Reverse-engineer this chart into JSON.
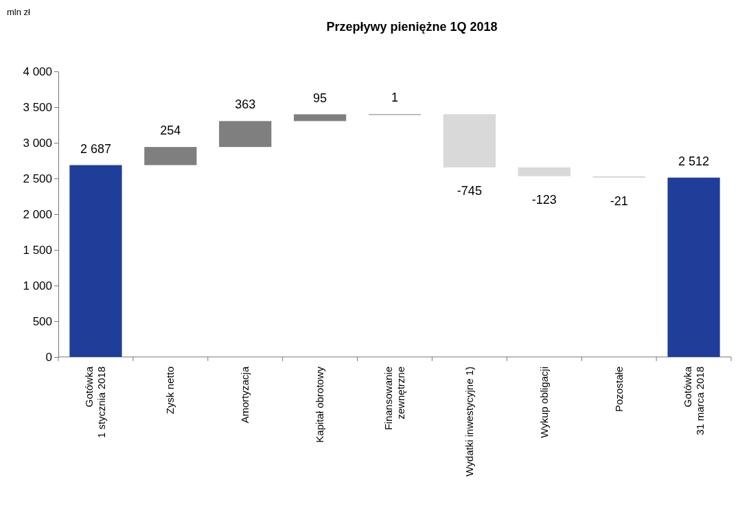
{
  "chart_data": {
    "type": "bar",
    "title": "Przepływy pieniężne 1Q 2018",
    "annotations": [
      "mln zł"
    ],
    "categories": [
      "Gotówka\n1 stycznia 2018",
      "Zysk netto",
      "Amortyzacja",
      "Kapitał obrotowy",
      "Finansowanie\nzewnętrzne",
      "Wydatki inwestycyjne 1)",
      "Wykup obligacji",
      "Pozostałe",
      "Gotówka\n31 marca 2018"
    ],
    "values": [
      2687,
      254,
      363,
      95,
      1,
      -745,
      -123,
      -21,
      2512
    ],
    "base": [
      0,
      2687,
      2941,
      3304,
      3399,
      3400,
      2655,
      2532,
      0
    ],
    "colors": [
      "#1f3e9a",
      "#7f7f7f",
      "#7f7f7f",
      "#7f7f7f",
      "#7f7f7f",
      "#d9d9d9",
      "#d9d9d9",
      "#d9d9d9",
      "#1f3e9a"
    ],
    "value_labels": [
      "2 687",
      "254",
      "363",
      "95",
      "1",
      "-745",
      "-123",
      "-21",
      "2 512"
    ],
    "ylim": [
      0,
      4000
    ],
    "yticks": [
      {
        "value": 0,
        "label": "0"
      },
      {
        "value": 500,
        "label": "500"
      },
      {
        "value": 1000,
        "label": "1 000"
      },
      {
        "value": 1500,
        "label": "1 500"
      },
      {
        "value": 2000,
        "label": "2 000"
      },
      {
        "value": 2500,
        "label": "2 500"
      },
      {
        "value": 3000,
        "label": "3 000"
      },
      {
        "value": 3500,
        "label": "3 500"
      },
      {
        "value": 4000,
        "label": "4 000"
      }
    ],
    "grid": false
  }
}
